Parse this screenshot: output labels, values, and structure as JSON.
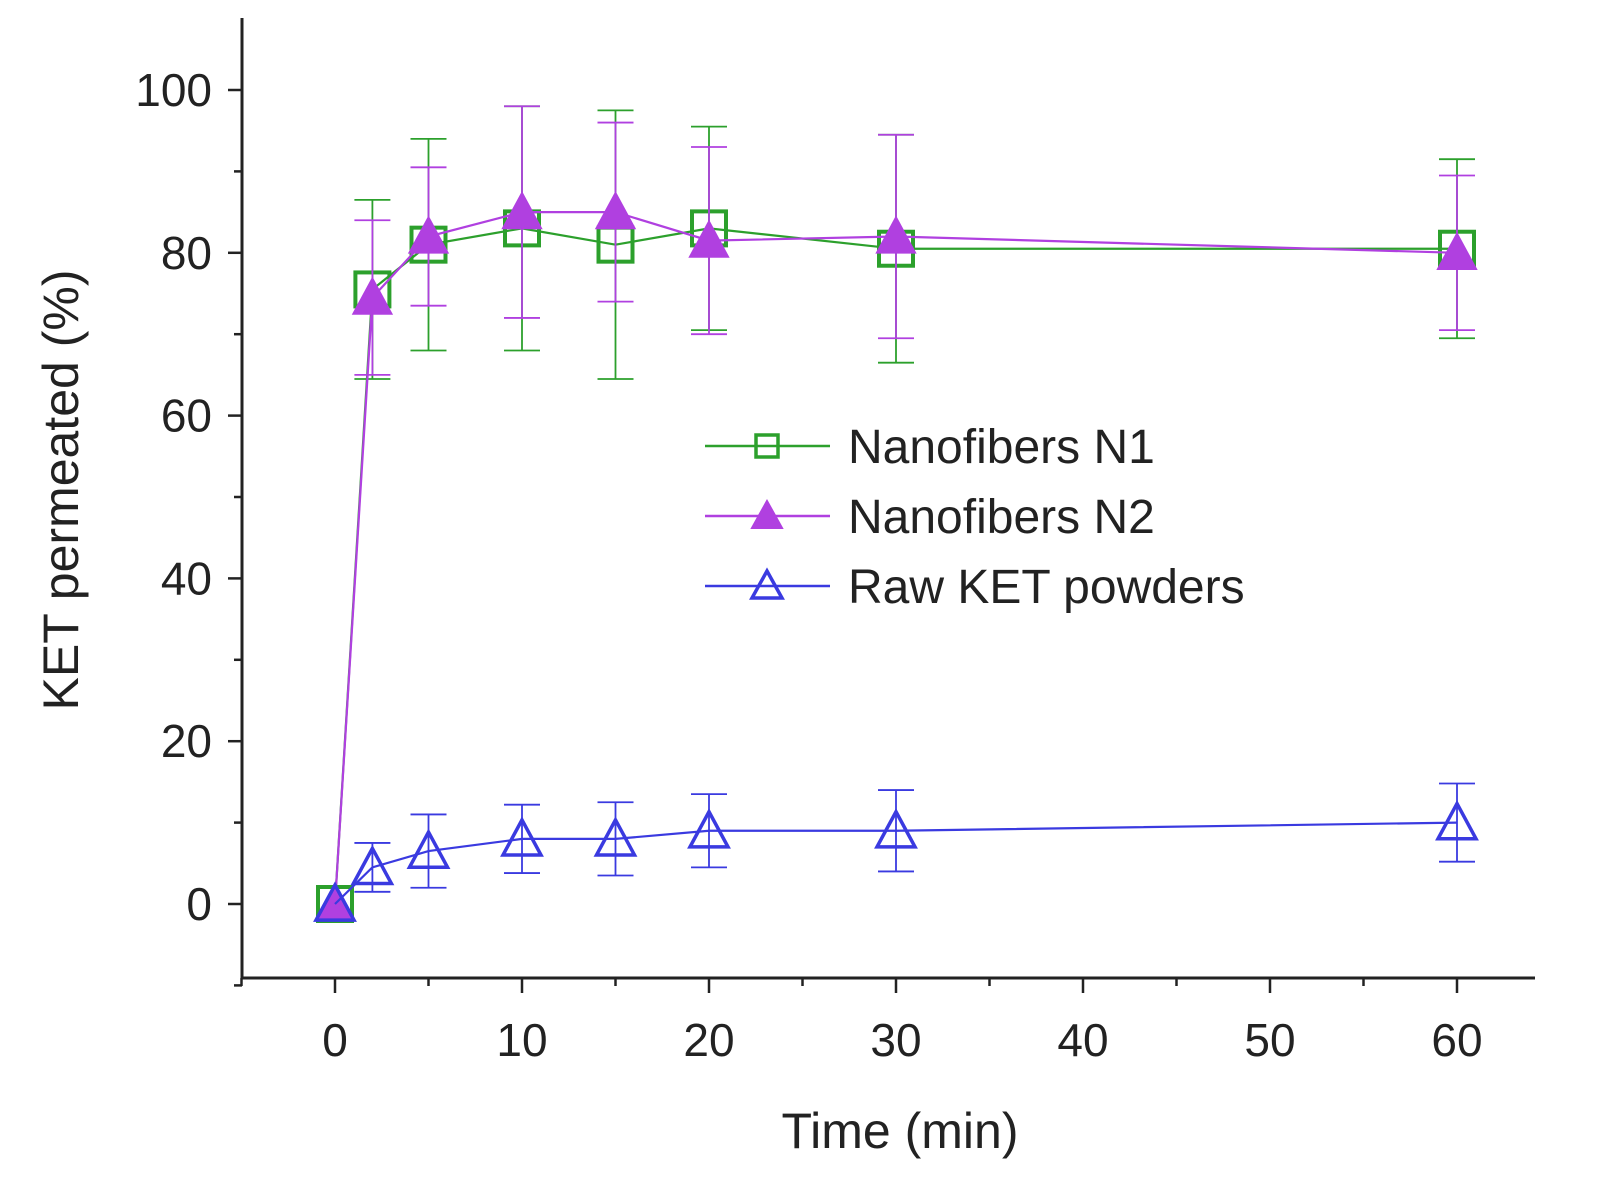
{
  "chart_data": {
    "type": "line",
    "title": "",
    "xlabel": "Time (min)",
    "ylabel": "KET permeated (%)",
    "xlim": [
      -5,
      64
    ],
    "ylim": [
      -9,
      108
    ],
    "x_ticks": [
      0,
      10,
      20,
      30,
      40,
      50,
      60
    ],
    "x_tick_labels": [
      "0",
      "10",
      "20",
      "30",
      "40",
      "50",
      "60"
    ],
    "y_ticks": [
      0,
      20,
      40,
      60,
      80,
      100
    ],
    "y_tick_labels": [
      "0",
      "20",
      "40",
      "60",
      "80",
      "100"
    ],
    "grid": false,
    "legend_position": "center-right",
    "series": [
      {
        "name": "Nanofibers N1",
        "color": "#2ca02c",
        "marker": "square-open",
        "x": [
          0,
          2,
          5,
          10,
          15,
          20,
          30,
          60
        ],
        "y": [
          0,
          75.5,
          81,
          83,
          81,
          83,
          80.5,
          80.5
        ],
        "err": [
          0,
          11,
          13,
          15,
          16.5,
          12.5,
          14,
          11
        ]
      },
      {
        "name": "Nanofibers N2",
        "color": "#b040e0",
        "marker": "triangle-filled",
        "x": [
          0,
          2,
          5,
          10,
          15,
          20,
          30,
          60
        ],
        "y": [
          0,
          74.5,
          82,
          85,
          85,
          81.5,
          82,
          80
        ],
        "err": [
          0,
          9.5,
          8.5,
          13,
          11,
          11.5,
          12.5,
          9.5
        ]
      },
      {
        "name": "Raw KET powders",
        "color": "#3a3ae0",
        "marker": "triangle-open",
        "x": [
          0,
          2,
          5,
          10,
          15,
          20,
          30,
          60
        ],
        "y": [
          0,
          4.5,
          6.5,
          8,
          8,
          9,
          9,
          10
        ],
        "err": [
          0,
          3,
          4.5,
          4.2,
          4.5,
          4.5,
          5,
          4.8
        ]
      }
    ]
  }
}
